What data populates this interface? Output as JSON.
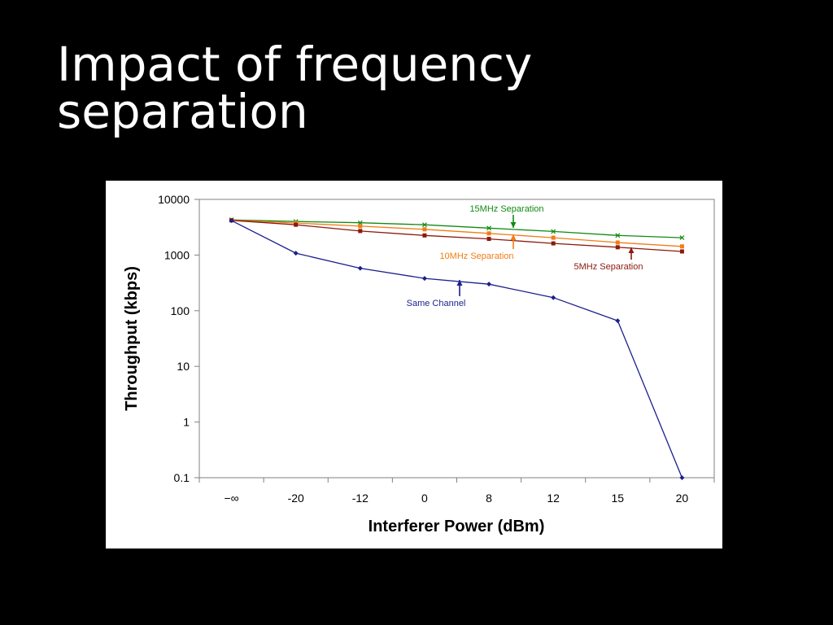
{
  "slide": {
    "title_line1": "Impact of frequency",
    "title_line2": "separation"
  },
  "chart_data": {
    "type": "line",
    "xlabel": "Interferer Power (dBm)",
    "ylabel": "Throughput (kbps)",
    "y_scale": "log",
    "ylim": [
      0.1,
      10000
    ],
    "y_ticks": [
      "10000",
      "1000",
      "100",
      "10",
      "1",
      "0.1"
    ],
    "categories": [
      "−∞",
      "-20",
      "-12",
      "0",
      "8",
      "12",
      "15",
      "20"
    ],
    "grid": false,
    "legend": "none",
    "series": [
      {
        "name": "15MHz Separation",
        "color": "#138a13",
        "marker": "x",
        "values": [
          4300,
          4000,
          3800,
          3500,
          3050,
          2650,
          2250,
          2050
        ]
      },
      {
        "name": "10MHz Separation",
        "color": "#f07d16",
        "marker": "square",
        "values": [
          4250,
          3750,
          3300,
          2900,
          2450,
          2050,
          1680,
          1430
        ]
      },
      {
        "name": "5MHz Separation",
        "color": "#8b1a0c",
        "marker": "square",
        "values": [
          4200,
          3500,
          2700,
          2250,
          1950,
          1620,
          1380,
          1160
        ]
      },
      {
        "name": "Same Channel",
        "color": "#1a1f8c",
        "marker": "diamond",
        "values": [
          4150,
          1080,
          580,
          380,
          300,
          172,
          66,
          0.1
        ]
      }
    ],
    "annotations": [
      {
        "text": "15MHz Separation",
        "series": 0,
        "arrow": "down",
        "color": "#138a13"
      },
      {
        "text": "10MHz Separation",
        "series": 1,
        "arrow": "up",
        "color": "#f07d16"
      },
      {
        "text": "5MHz Separation",
        "series": 2,
        "arrow": "up",
        "color": "#8b1a0c"
      },
      {
        "text": "Same Channel",
        "series": 3,
        "arrow": "up",
        "color": "#1a1f8c"
      }
    ]
  }
}
